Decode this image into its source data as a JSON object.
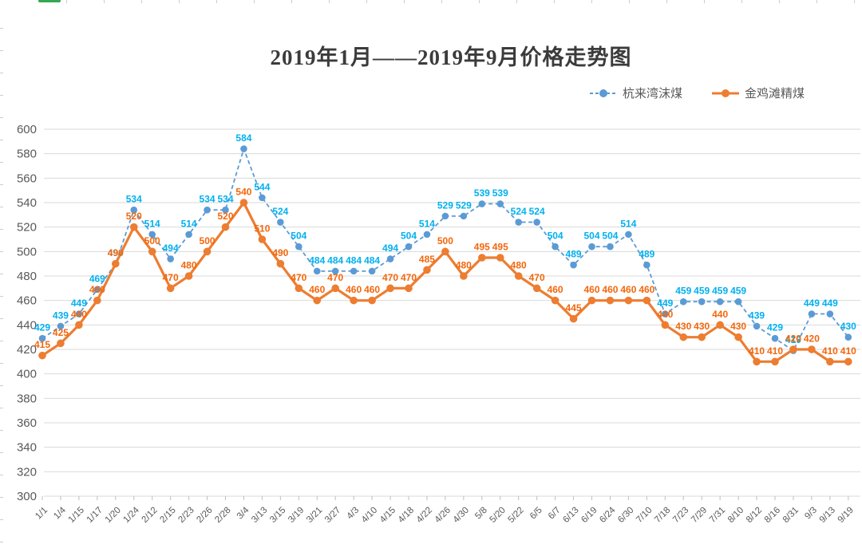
{
  "title": "2019年1月——2019年9月价格走势图",
  "chart_data": {
    "type": "line",
    "title": "2019年1月——2019年9月价格走势图",
    "xlabel": "",
    "ylabel": "",
    "ylim": [
      300,
      600
    ],
    "ytick_step": 20,
    "grid": "horizontal",
    "legend_position": "top-right",
    "categories": [
      "1/1",
      "1/4",
      "1/15",
      "1/17",
      "1/20",
      "1/24",
      "2/12",
      "2/15",
      "2/23",
      "2/26",
      "2/28",
      "3/4",
      "3/13",
      "3/15",
      "3/19",
      "3/21",
      "3/27",
      "4/3",
      "4/10",
      "4/15",
      "4/18",
      "4/22",
      "4/26",
      "4/30",
      "5/8",
      "5/20",
      "5/22",
      "6/5",
      "6/7",
      "6/13",
      "6/19",
      "6/24",
      "6/30",
      "7/10",
      "7/18",
      "7/23",
      "7/29",
      "7/31",
      "8/10",
      "8/12",
      "8/16",
      "8/31",
      "9/3",
      "9/13",
      "9/19"
    ],
    "series": [
      {
        "name": "杭来湾沫煤",
        "style": "dashed",
        "color": "#5B9BD5",
        "label_color": "#00B0F0",
        "values": [
          429,
          439,
          449,
          469,
          490,
          534,
          514,
          494,
          514,
          534,
          534,
          584,
          544,
          524,
          504,
          484,
          484,
          484,
          484,
          494,
          504,
          514,
          529,
          529,
          539,
          539,
          524,
          524,
          504,
          489,
          504,
          504,
          514,
          489,
          449,
          459,
          459,
          459,
          459,
          439,
          429,
          419,
          449,
          449,
          430
        ]
      },
      {
        "name": "金鸡滩精煤",
        "style": "solid",
        "color": "#ED7D31",
        "label_color": "#F4670C",
        "values": [
          415,
          425,
          440,
          460,
          490,
          520,
          500,
          470,
          480,
          500,
          520,
          540,
          510,
          490,
          470,
          460,
          470,
          460,
          460,
          470,
          470,
          485,
          500,
          480,
          495,
          495,
          480,
          470,
          460,
          445,
          460,
          460,
          460,
          460,
          440,
          430,
          430,
          440,
          430,
          410,
          410,
          420,
          420,
          410,
          410
        ]
      }
    ],
    "axis_text_color": "#595959",
    "grid_color": "#D9D9D9",
    "axis_tick_color": "#BFBFBF"
  }
}
